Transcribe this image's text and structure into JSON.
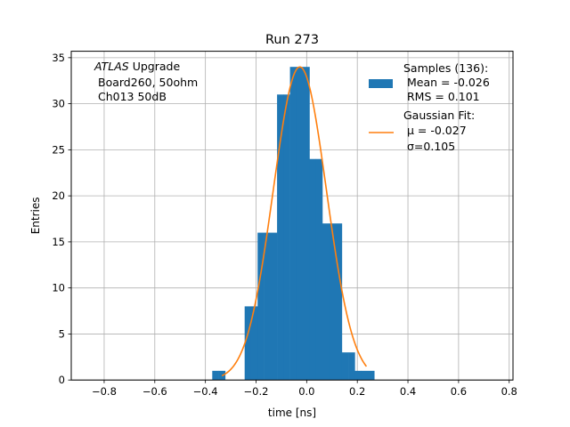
{
  "chart_data": {
    "type": "bar",
    "title": "Run 273",
    "xlabel": "time [ns]",
    "ylabel": "Entries",
    "xlim": [
      -0.93,
      0.815
    ],
    "ylim": [
      0,
      35.7
    ],
    "grid": true,
    "x_ticks": [
      -0.8,
      -0.6,
      -0.4,
      -0.2,
      0.0,
      0.2,
      0.4,
      0.6,
      0.8
    ],
    "x_tick_labels": [
      "−0.8",
      "−0.6",
      "−0.4",
      "−0.2",
      "0.0",
      "0.2",
      "0.4",
      "0.6",
      "0.8"
    ],
    "y_ticks": [
      0,
      5,
      10,
      15,
      20,
      25,
      30,
      35
    ],
    "y_tick_labels": [
      "0",
      "5",
      "10",
      "15",
      "20",
      "25",
      "30",
      "35"
    ],
    "annotation": {
      "line1_italic": "ATLAS",
      "line1_rest": " Upgrade",
      "line2": "Board260, 50ohm",
      "line3": "Ch013 50dB"
    },
    "histogram": {
      "name": "Samples (136):",
      "color": "#1f77b4",
      "bin_edges": [
        -0.373,
        -0.3475,
        -0.322,
        -0.296,
        -0.245,
        -0.2195,
        -0.194,
        -0.168,
        -0.117,
        -0.0915,
        -0.066,
        -0.04,
        0.011,
        0.0365,
        0.062,
        0.088,
        0.139,
        0.1645,
        0.19,
        0.216,
        0.267
      ],
      "counts": [
        1,
        1,
        0,
        0,
        8,
        8,
        16,
        16,
        31,
        31,
        34,
        34,
        24,
        24,
        17,
        17,
        3,
        3,
        1,
        1
      ]
    },
    "fit": {
      "name": "Gaussian Fit:",
      "color": "#ff7f0e",
      "mu": -0.027,
      "sigma": 0.105,
      "amplitude": 34.0,
      "x_range": [
        -0.335,
        0.236
      ]
    },
    "legend": {
      "position": "top-right",
      "samples_lines": [
        "Samples (136):",
        "Mean = -0.026",
        "RMS = 0.101"
      ],
      "fit_lines": [
        "Gaussian Fit:",
        "μ = -0.027",
        "σ=0.105"
      ]
    }
  }
}
